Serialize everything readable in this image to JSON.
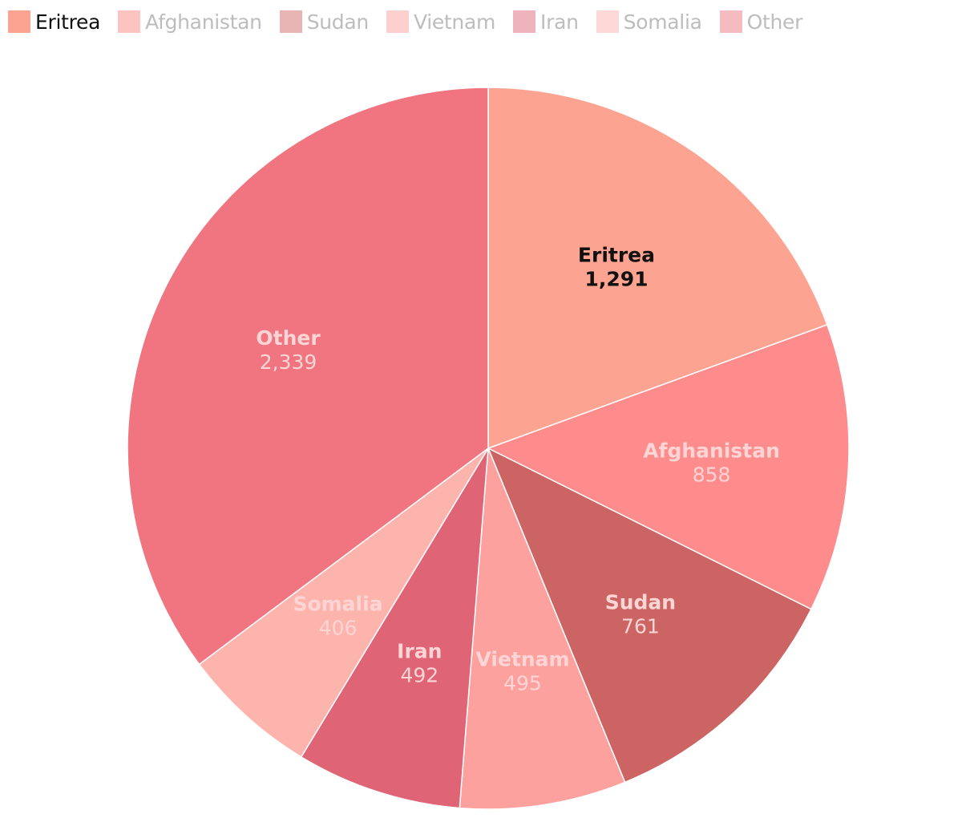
{
  "legend": {
    "items": [
      {
        "label": "Eritrea",
        "swatch": "#fda391",
        "active": true
      },
      {
        "label": "Afghanistan",
        "swatch": "#fdc3c0",
        "active": false
      },
      {
        "label": "Sudan",
        "swatch": "#e8b4b4",
        "active": false
      },
      {
        "label": "Vietnam",
        "swatch": "#fdcfcd",
        "active": false
      },
      {
        "label": "Iran",
        "swatch": "#eeb3bc",
        "active": false
      },
      {
        "label": "Somalia",
        "swatch": "#fdd8d6",
        "active": false
      },
      {
        "label": "Other",
        "swatch": "#f6bac1",
        "active": false
      }
    ]
  },
  "chart_data": {
    "type": "pie",
    "categories": [
      "Eritrea",
      "Afghanistan",
      "Sudan",
      "Vietnam",
      "Iran",
      "Somalia",
      "Other"
    ],
    "values": [
      1291,
      858,
      761,
      495,
      492,
      406,
      2339
    ],
    "value_labels": [
      "1,291",
      "858",
      "761",
      "495",
      "492",
      "406",
      "2,339"
    ],
    "colors": [
      "#fda391",
      "#fe8c8c",
      "#cc6464",
      "#fda19f",
      "#df6475",
      "#fdb4ad",
      "#f07580"
    ],
    "label_colors": [
      "#111111",
      "#fdd5d5",
      "#fdd5d5",
      "#fdd5d5",
      "#fdd5d5",
      "#fdd5d5",
      "#fdd5d5"
    ],
    "start": "12 o'clock",
    "direction": "clockwise",
    "legend_position": "top-left"
  }
}
